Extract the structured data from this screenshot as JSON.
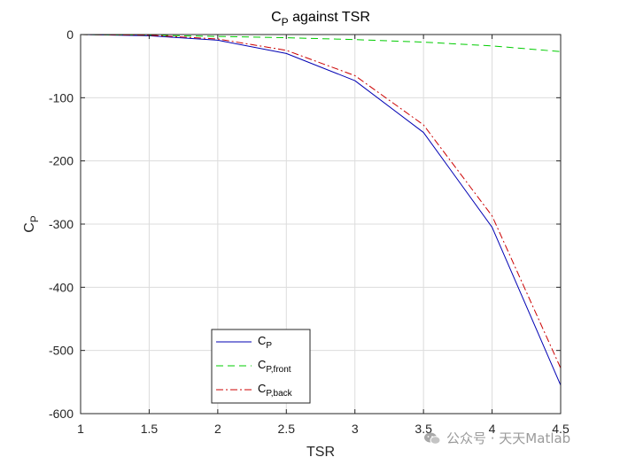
{
  "chart_data": {
    "type": "line",
    "title_main": "C",
    "title_sub": "P",
    "title_rest": " against TSR",
    "xlabel": "TSR",
    "ylabel_main": "C",
    "ylabel_sub": "P",
    "xlim": [
      1,
      4.5
    ],
    "ylim": [
      -600,
      0
    ],
    "xticks": [
      1,
      1.5,
      2,
      2.5,
      3,
      3.5,
      4,
      4.5
    ],
    "yticks": [
      0,
      -100,
      -200,
      -300,
      -400,
      -500,
      -600
    ],
    "xtick_labels": [
      "1",
      "1.5",
      "2",
      "2.5",
      "3",
      "3.5",
      "4",
      "4.5"
    ],
    "ytick_labels": [
      "0",
      "-100",
      "-200",
      "-300",
      "-400",
      "-500",
      "-600"
    ],
    "grid": true,
    "legend_position": "bottom-center",
    "x": [
      1,
      1.5,
      2,
      2.5,
      3,
      3.5,
      4,
      4.5
    ],
    "series": [
      {
        "name_main": "C",
        "name_sub": "P",
        "color": "#0000b3",
        "dash": "",
        "values": [
          0,
          -2,
          -9,
          -30,
          -73,
          -155,
          -305,
          -555
        ]
      },
      {
        "name_main": "C",
        "name_sub": "P,front",
        "color": "#00cc00",
        "dash": "8,5",
        "values": [
          0,
          -1,
          -3,
          -5,
          -8,
          -12,
          -18,
          -27
        ]
      },
      {
        "name_main": "C",
        "name_sub": "P,back",
        "color": "#cc0000",
        "dash": "8,3,2,3",
        "values": [
          0,
          -1,
          -7,
          -25,
          -65,
          -143,
          -287,
          -528
        ]
      }
    ]
  },
  "watermark": {
    "text": "公众号 · 天天Matlab",
    "icon": "wechat-icon"
  }
}
